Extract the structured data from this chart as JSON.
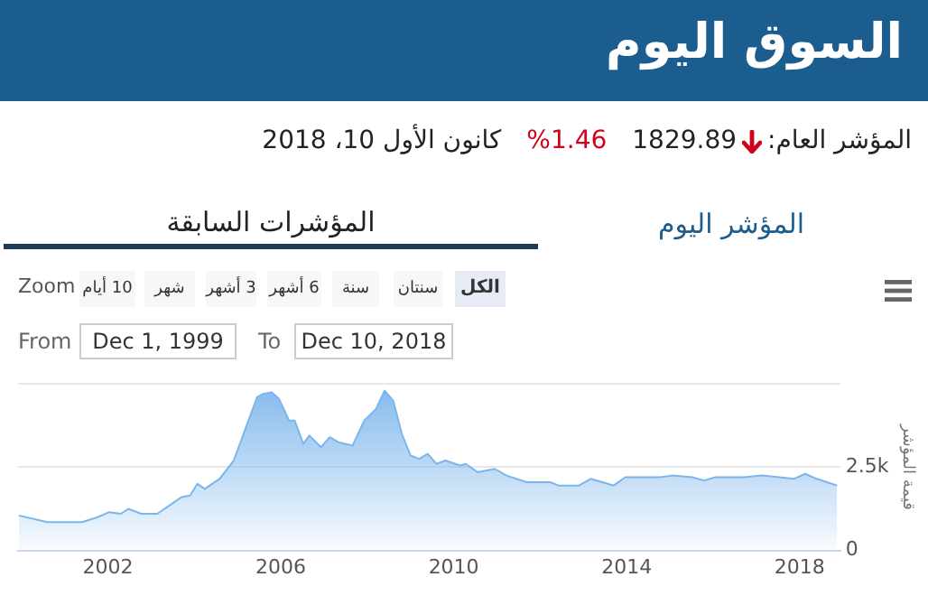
{
  "chart_data": {
    "type": "area",
    "title": "السوق اليوم",
    "ylabel": "قيمة المؤشر",
    "annotations": [
      "المؤشر العام:",
      "1829.89",
      "%1.46",
      "كانون الأول 10، 2018",
      "المؤشر اليوم",
      "المؤشرات السابقة",
      "Zoom",
      "10 أيام",
      "شهر",
      "3 أشهر",
      "6 أشهر",
      "سنة",
      "سنتان",
      "الكل",
      "From",
      "Dec 1, 1999",
      "To",
      "Dec 10, 2018"
    ],
    "x": [
      1999.94,
      2000.6,
      2001.4,
      2001.76,
      2002.03,
      2002.3,
      2002.47,
      2002.77,
      2003.14,
      2003.7,
      2003.9,
      2004.07,
      2004.24,
      2004.58,
      2004.91,
      2005.25,
      2005.45,
      2005.58,
      2005.79,
      2005.96,
      2006.19,
      2006.32,
      2006.52,
      2006.66,
      2006.93,
      2007.13,
      2007.33,
      2007.66,
      2007.93,
      2008.2,
      2008.4,
      2008.6,
      2008.8,
      2009.0,
      2009.2,
      2009.4,
      2009.6,
      2009.81,
      2010.15,
      2010.28,
      2010.55,
      2010.95,
      2011.22,
      2011.69,
      2012.23,
      2012.43,
      2012.9,
      2013.17,
      2013.44,
      2013.7,
      2013.97,
      2014.44,
      2014.78,
      2015.05,
      2015.52,
      2015.79,
      2016.05,
      2016.72,
      2017.13,
      2017.53,
      2017.87,
      2018.13,
      2018.4,
      2018.87
    ],
    "series": [
      {
        "color": "#7cb5ec",
        "values": [
          1050,
          850,
          850,
          1000,
          1150,
          1100,
          1250,
          1100,
          1100,
          1600,
          1650,
          2000,
          1850,
          2150,
          2700,
          3900,
          4600,
          4700,
          4750,
          4550,
          3900,
          3900,
          3200,
          3450,
          3100,
          3400,
          3250,
          3150,
          3900,
          4250,
          4800,
          4500,
          3500,
          2850,
          2750,
          2900,
          2600,
          2700,
          2550,
          2600,
          2350,
          2450,
          2250,
          2050,
          2050,
          1950,
          1950,
          2150,
          2050,
          1950,
          2200,
          2200,
          2200,
          2250,
          2200,
          2100,
          2200,
          2200,
          2250,
          2200,
          2150,
          2300,
          2150,
          1950
        ]
      }
    ],
    "xlim": [
      1999.92,
      2018.94
    ],
    "xticks": [
      2002,
      2006,
      2010,
      2014,
      2018
    ],
    "ylim": [
      0,
      5000
    ],
    "yticks": [
      0,
      {
        "value": 2500,
        "label": "2.5k"
      },
      {
        "value": 5000,
        "label": null
      }
    ],
    "grid": "y",
    "legend": false,
    "marker": "none"
  }
}
